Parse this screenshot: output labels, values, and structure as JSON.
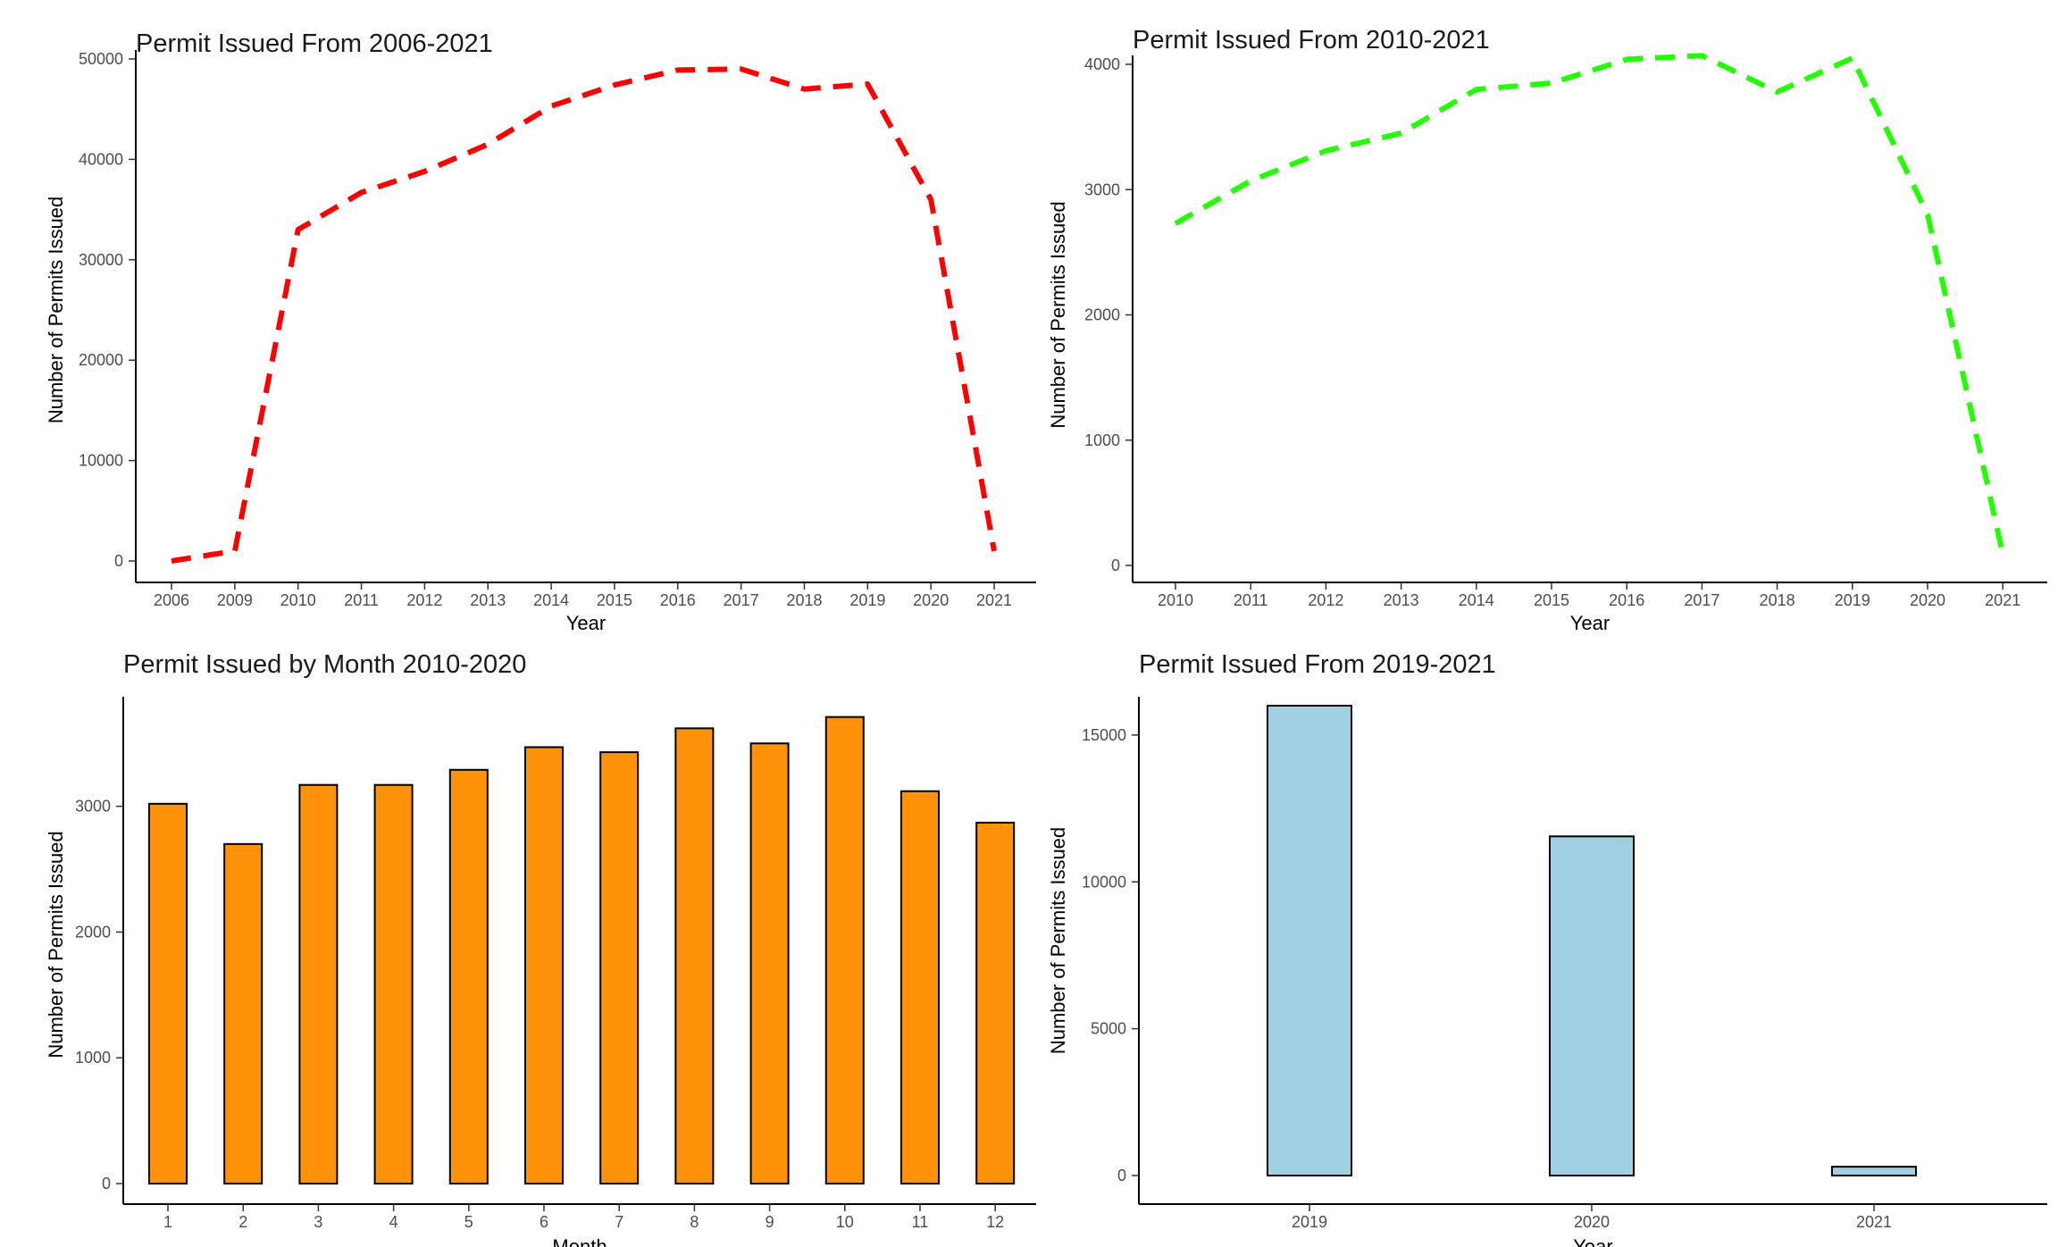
{
  "chart_data": [
    {
      "type": "line",
      "title": "Permit Issued From 2006-2021",
      "xlabel": "Year",
      "ylabel": "Number of Permits Issued",
      "categories": [
        "2006",
        "2009",
        "2010",
        "2011",
        "2012",
        "2013",
        "2014",
        "2015",
        "2016",
        "2017",
        "2018",
        "2019",
        "2020",
        "2021"
      ],
      "values": [
        0,
        1000,
        33000,
        36700,
        38800,
        41500,
        45300,
        47400,
        48900,
        49000,
        47000,
        47500,
        36000,
        1000
      ],
      "yticks": [
        0,
        10000,
        20000,
        30000,
        40000,
        50000
      ],
      "ylim": [
        0,
        50000
      ],
      "color": "#ff0000",
      "line_style": "dashed",
      "grid": false
    },
    {
      "type": "line",
      "title": "Permit Issued From 2010-2021",
      "xlabel": "Year",
      "ylabel": "Number of Permits Issued",
      "categories": [
        "2010",
        "2011",
        "2012",
        "2013",
        "2014",
        "2015",
        "2016",
        "2017",
        "2018",
        "2019",
        "2020",
        "2021"
      ],
      "values": [
        2730,
        3070,
        3310,
        3450,
        3800,
        3850,
        4040,
        4070,
        3780,
        4050,
        2800,
        90
      ],
      "yticks": [
        0,
        1000,
        2000,
        3000,
        4000
      ],
      "ylim": [
        0,
        4000
      ],
      "color": "#22ff00",
      "line_style": "dashed",
      "grid": false
    },
    {
      "type": "bar",
      "title": "Permit Issued by Month 2010-2020",
      "xlabel": "Month",
      "ylabel": "Number of Permits Issued",
      "categories": [
        "1",
        "2",
        "3",
        "4",
        "5",
        "6",
        "7",
        "8",
        "9",
        "10",
        "11",
        "12"
      ],
      "values": [
        3020,
        2700,
        3170,
        3170,
        3290,
        3470,
        3430,
        3620,
        3500,
        3710,
        3120,
        2870
      ],
      "yticks": [
        0,
        1000,
        2000,
        3000
      ],
      "ylim": [
        0,
        3700
      ],
      "color": "#ff9208",
      "grid": false
    },
    {
      "type": "bar",
      "title": "Permit Issued From 2019-2021",
      "xlabel": "Year",
      "ylabel": "Number of Permits Issued",
      "categories": [
        "2019",
        "2020",
        "2021"
      ],
      "values": [
        16000,
        11550,
        300
      ],
      "yticks": [
        0,
        5000,
        10000,
        15000
      ],
      "ylim": [
        0,
        16000
      ],
      "color": "#9fcfe0",
      "grid": false
    }
  ]
}
